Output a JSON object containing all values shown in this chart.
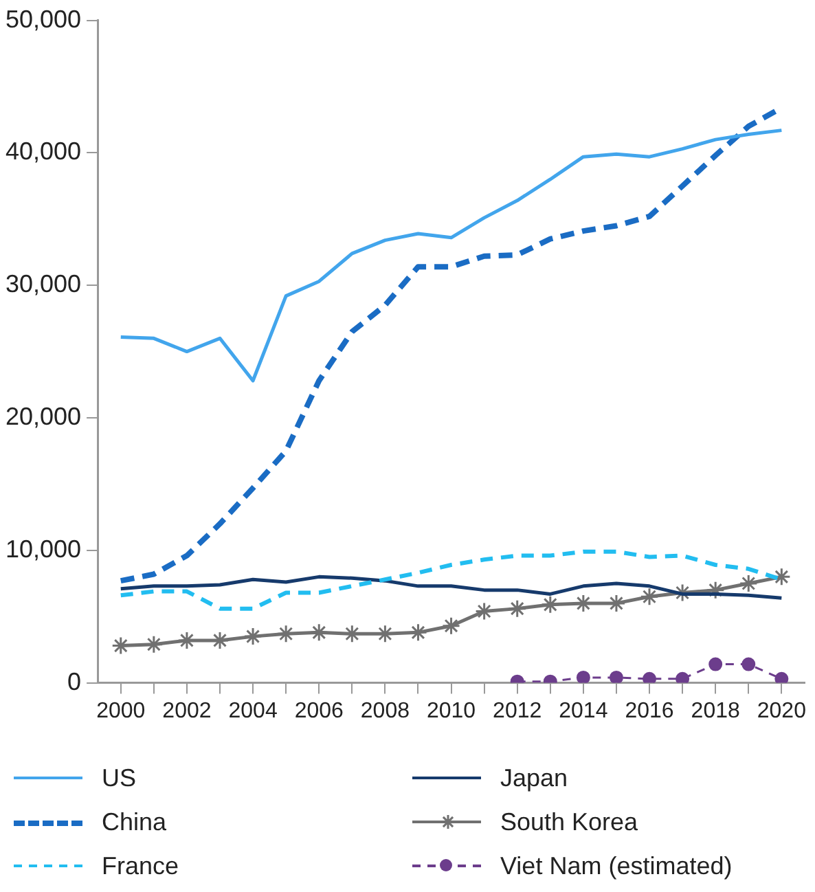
{
  "chart_data": {
    "type": "line",
    "x": [
      2000,
      2001,
      2002,
      2003,
      2004,
      2005,
      2006,
      2007,
      2008,
      2009,
      2010,
      2011,
      2012,
      2013,
      2014,
      2015,
      2016,
      2017,
      2018,
      2019,
      2020
    ],
    "xlim": [
      1999.3,
      2020.7
    ],
    "xticks": [
      2000,
      {
        "value": 2001,
        "label": null
      },
      2002,
      {
        "value": 2003,
        "label": null
      },
      2004,
      {
        "value": 2005,
        "label": null
      },
      2006,
      {
        "value": 2007,
        "label": null
      },
      2008,
      {
        "value": 2009,
        "label": null
      },
      2010,
      {
        "value": 2011,
        "label": null
      },
      2012,
      {
        "value": 2013,
        "label": null
      },
      2014,
      {
        "value": 2015,
        "label": null
      },
      2016,
      {
        "value": 2017,
        "label": null
      },
      2018,
      {
        "value": 2019,
        "label": null
      },
      2020
    ],
    "ylim": [
      0,
      50000
    ],
    "yticks": [
      0,
      {
        "value": 10000,
        "label": "10,000"
      },
      {
        "value": 20000,
        "label": "20,000"
      },
      {
        "value": 30000,
        "label": "30,000"
      },
      {
        "value": 40000,
        "label": "40,000"
      },
      {
        "value": 50000,
        "label": "50,000"
      }
    ],
    "grid": false,
    "legend": "bottom",
    "series": [
      {
        "name": "US",
        "color": "#42a5ec",
        "line_style": "solid",
        "marker": "none",
        "values": [
          26100,
          26000,
          25000,
          26000,
          22800,
          29200,
          30300,
          32400,
          33400,
          33900,
          33600,
          35100,
          36400,
          38000,
          39700,
          39900,
          39700,
          40300,
          41000,
          41400,
          41700
        ]
      },
      {
        "name": "China",
        "color": "#1a6cc4",
        "line_style": "dashed",
        "marker": "none",
        "values": [
          7700,
          8200,
          9600,
          12000,
          14700,
          17500,
          22800,
          26500,
          28500,
          31400,
          31400,
          32200,
          32300,
          33500,
          34100,
          34500,
          35200,
          37500,
          39800,
          42000,
          43400
        ]
      },
      {
        "name": "France",
        "color": "#22bdf0",
        "line_style": "dashed",
        "marker": "none",
        "values": [
          6600,
          6900,
          6900,
          5600,
          5600,
          6800,
          6800,
          7300,
          7800,
          8300,
          8900,
          9300,
          9600,
          9600,
          9900,
          9900,
          9500,
          9600,
          8900,
          8600,
          7800
        ]
      },
      {
        "name": "Japan",
        "color": "#163a6c",
        "line_style": "solid",
        "marker": "none",
        "values": [
          7100,
          7300,
          7300,
          7400,
          7800,
          7600,
          8000,
          7900,
          7700,
          7300,
          7300,
          7000,
          7000,
          6700,
          7300,
          7500,
          7300,
          6700,
          6700,
          6600,
          6400
        ]
      },
      {
        "name": "South Korea",
        "color": "#707070",
        "line_style": "solid",
        "marker": "cross",
        "values": [
          2800,
          2900,
          3200,
          3200,
          3500,
          3700,
          3800,
          3700,
          3700,
          3800,
          4300,
          5400,
          5600,
          5900,
          6000,
          6000,
          6500,
          6800,
          7000,
          7500,
          8000
        ]
      },
      {
        "name": "Viet Nam (estimated)",
        "color": "#6c3d8c",
        "line_style": "dashed",
        "marker": "circle",
        "values": [
          null,
          null,
          null,
          null,
          null,
          null,
          null,
          null,
          null,
          null,
          null,
          null,
          100,
          100,
          400,
          400,
          300,
          300,
          1400,
          1400,
          300
        ]
      }
    ]
  }
}
